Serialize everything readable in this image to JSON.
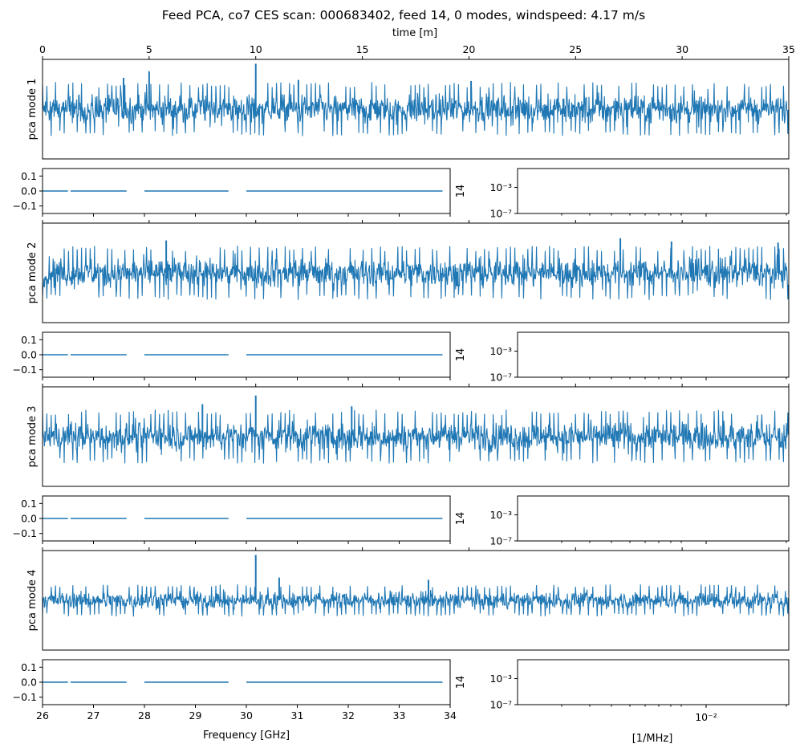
{
  "figure": {
    "title": "Feed PCA, co7 CES scan: 000683402, feed 14, 0 modes, windspeed: 4.17 m/s"
  },
  "colors": {
    "series": "#1f77b4",
    "axes": "#000000",
    "background": "#ffffff"
  },
  "chart_data": [
    {
      "type": "line",
      "panel": "timestream",
      "ylabel": "pca mode 1",
      "xlabel": "time [m]",
      "xlabel_position": "top",
      "xlim": [
        0,
        35
      ],
      "x_ticks": [
        "0",
        "5",
        "10",
        "15",
        "20",
        "25",
        "30",
        "35"
      ],
      "y_ticks_shown": false,
      "noise_band": [
        -1.0,
        1.0
      ],
      "spikes": [
        {
          "x": 3.8,
          "y": 1.45
        },
        {
          "x": 5.0,
          "y": 1.75
        },
        {
          "x": 10.0,
          "y": 2.1
        },
        {
          "x": 12.0,
          "y": 1.35
        },
        {
          "x": 20.1,
          "y": 1.3
        }
      ]
    },
    {
      "type": "line",
      "panel": "spectrum",
      "series_label": "14",
      "xlim": [
        26,
        34
      ],
      "ylim": [
        -0.15,
        0.15
      ],
      "y_ticks": [
        "0.1",
        "0.0",
        "−0.1"
      ],
      "segments": [
        [
          26.0,
          26.5
        ],
        [
          26.55,
          27.65
        ],
        [
          28.0,
          29.65
        ],
        [
          30.0,
          33.85
        ]
      ],
      "value": 0.0
    },
    {
      "type": "line",
      "panel": "power-spectrum",
      "yscale": "log",
      "y_ticks": [
        "10⁻³",
        "10⁻⁷"
      ],
      "series": []
    },
    {
      "type": "line",
      "panel": "timestream",
      "ylabel": "pca mode 2",
      "xlim": [
        0,
        35
      ],
      "y_ticks_shown": false,
      "noise_band": [
        -1.0,
        1.0
      ],
      "spikes": [
        {
          "x": 5.8,
          "y": 1.5
        },
        {
          "x": 27.1,
          "y": 1.6
        },
        {
          "x": 29.5,
          "y": 1.45
        },
        {
          "x": 34.5,
          "y": 1.4
        }
      ]
    },
    {
      "type": "line",
      "panel": "spectrum",
      "series_label": "14",
      "xlim": [
        26,
        34
      ],
      "ylim": [
        -0.15,
        0.15
      ],
      "y_ticks": [
        "0.1",
        "0.0",
        "−0.1"
      ],
      "segments": [
        [
          26.0,
          26.5
        ],
        [
          26.55,
          27.65
        ],
        [
          28.0,
          29.65
        ],
        [
          30.0,
          33.85
        ]
      ],
      "value": 0.0
    },
    {
      "type": "line",
      "panel": "power-spectrum",
      "yscale": "log",
      "y_ticks": [
        "10⁻³",
        "10⁻⁷"
      ],
      "series": []
    },
    {
      "type": "line",
      "panel": "timestream",
      "ylabel": "pca mode 3",
      "xlim": [
        0,
        35
      ],
      "y_ticks_shown": false,
      "noise_band": [
        -1.0,
        1.0
      ],
      "spikes": [
        {
          "x": 7.5,
          "y": 1.5
        },
        {
          "x": 10.0,
          "y": 1.9
        },
        {
          "x": 14.5,
          "y": 1.4
        }
      ]
    },
    {
      "type": "line",
      "panel": "spectrum",
      "series_label": "14",
      "xlim": [
        26,
        34
      ],
      "ylim": [
        -0.15,
        0.15
      ],
      "y_ticks": [
        "0.1",
        "0.0",
        "−0.1"
      ],
      "segments": [
        [
          26.0,
          26.5
        ],
        [
          26.55,
          27.65
        ],
        [
          28.0,
          29.65
        ],
        [
          30.0,
          33.85
        ]
      ],
      "value": 0.0
    },
    {
      "type": "line",
      "panel": "power-spectrum",
      "yscale": "log",
      "y_ticks": [
        "10⁻³",
        "10⁻⁷"
      ],
      "series": []
    },
    {
      "type": "line",
      "panel": "timestream",
      "ylabel": "pca mode 4",
      "xlim": [
        0,
        35
      ],
      "y_ticks_shown": false,
      "noise_band": [
        -0.6,
        0.6
      ],
      "spikes": [
        {
          "x": 10.0,
          "y": 2.1
        },
        {
          "x": 11.1,
          "y": 1.05
        },
        {
          "x": 18.1,
          "y": 0.95
        }
      ]
    },
    {
      "type": "line",
      "panel": "spectrum",
      "series_label": "14",
      "xlabel": "Frequency [GHz]",
      "xlim": [
        26,
        34
      ],
      "x_ticks": [
        "26",
        "27",
        "28",
        "29",
        "30",
        "31",
        "32",
        "33",
        "34"
      ],
      "ylim": [
        -0.15,
        0.15
      ],
      "y_ticks": [
        "0.1",
        "0.0",
        "−0.1"
      ],
      "segments": [
        [
          26.0,
          26.5
        ],
        [
          26.55,
          27.65
        ],
        [
          28.0,
          29.65
        ],
        [
          30.0,
          33.85
        ]
      ],
      "value": 0.0
    },
    {
      "type": "line",
      "panel": "power-spectrum",
      "xlabel": "[1/MHz]",
      "xscale": "log",
      "x_ticks": [
        "10⁻²"
      ],
      "yscale": "log",
      "y_ticks": [
        "10⁻³",
        "10⁻⁷"
      ],
      "series": []
    }
  ]
}
